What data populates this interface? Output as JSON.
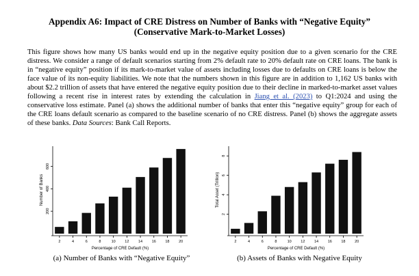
{
  "title": {
    "line1": "Appendix A6: Impact of CRE Distress on Number of Banks with “Negative Equity”",
    "line2": "(Conservative Mark-to-Market Losses)"
  },
  "body": {
    "p1": "This figure shows how many US banks would end up in the negative equity position due to a given scenario for the CRE distress. We consider a range of default scenarios starting from 2% default rate to 20% default rate on CRE loans. The bank is in “negative equity” position if its mark-to-market value of assets including losses due to defaults on CRE loans is below the face value of its non-equity liabilities. We note that the numbers shown in this figure are in addition to 1,162 US banks with about $2.2 trillion of assets that have entered the negative equity position due to their decline in marked-to-market asset values following a recent rise in interest rates by extending the calculation in ",
    "link": "Jiang et al. (2023)",
    "p2": " to Q1:2024 and using the conservative loss estimate. Panel (a) shows the additional number of banks that enter this “negative equity” group for each of the CRE loans default scenario as compared to the baseline scenario of no CRE distress. Panel (b) shows the aggregate assets of these banks. ",
    "sources_label": "Data Sources",
    "sources_text": ": Bank Call Reports."
  },
  "chart_data": [
    {
      "type": "bar",
      "panel": "a",
      "caption": "(a) Number of Banks with “Negative Equity”",
      "xlabel": "Percentage of CRE Default (%)",
      "ylabel": "Number of Banks",
      "categories": [
        "2",
        "4",
        "6",
        "8",
        "10",
        "12",
        "14",
        "16",
        "18",
        "20"
      ],
      "values": [
        60,
        110,
        185,
        270,
        330,
        410,
        505,
        590,
        675,
        755
      ],
      "yticks": [
        200,
        400,
        600
      ],
      "ylim": [
        0,
        780
      ],
      "bar_color": "#111111",
      "grid": false
    },
    {
      "type": "bar",
      "panel": "b",
      "caption": "(b) Assets of Banks with Negative Equity",
      "xlabel": "Percentage of CRE Default (%)",
      "ylabel": "Total Asset (Trillion)",
      "categories": [
        "2",
        "4",
        "6",
        "8",
        "10",
        "12",
        "14",
        "16",
        "18",
        "20"
      ],
      "values": [
        0.5,
        1.1,
        2.3,
        3.9,
        4.8,
        5.3,
        6.3,
        7.2,
        7.6,
        8.4
      ],
      "yticks": [
        2,
        4,
        6,
        8
      ],
      "ylim": [
        0,
        9
      ],
      "bar_color": "#111111",
      "grid": false
    }
  ]
}
